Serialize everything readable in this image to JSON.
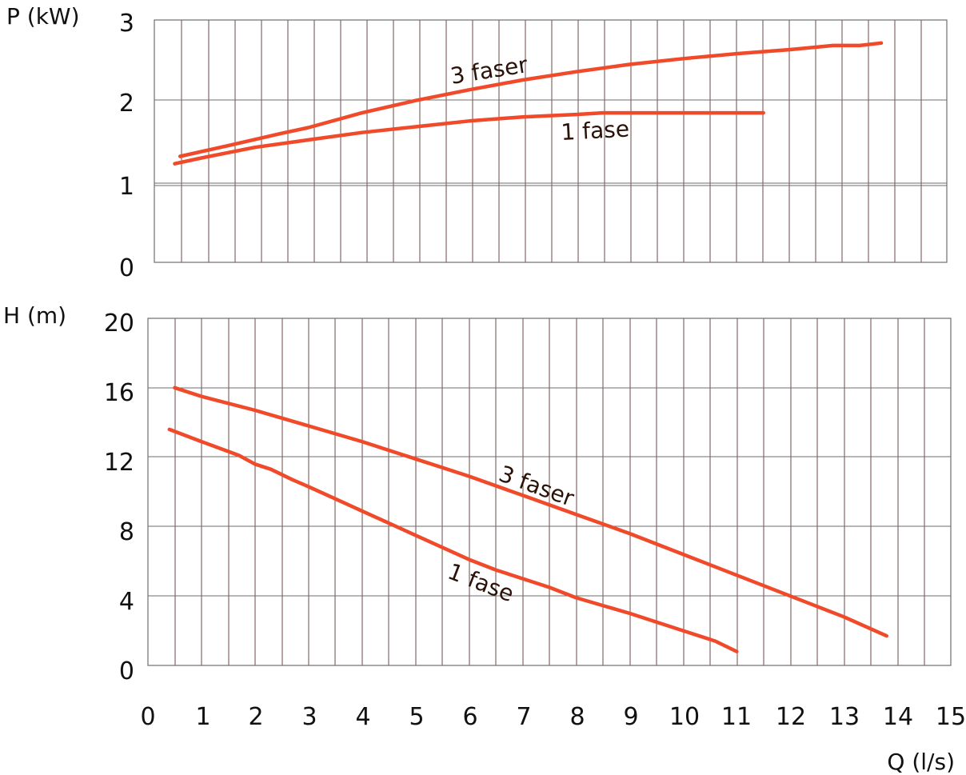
{
  "chart_data": [
    {
      "type": "line",
      "ylabel": "P (kW)",
      "xlim": [
        0,
        15
      ],
      "ylim": [
        0,
        3
      ],
      "yticks": [
        "0",
        "1",
        "2",
        "3"
      ],
      "grid": true,
      "series": [
        {
          "name": "3 faser",
          "color": "#f04a2a",
          "x": [
            0.6,
            1.5,
            2.5,
            3.0,
            4.0,
            5.0,
            6.0,
            7.0,
            8.0,
            9.0,
            10.0,
            11.0,
            12.0,
            12.8,
            13.3,
            13.7
          ],
          "y": [
            1.32,
            1.45,
            1.6,
            1.67,
            1.85,
            2.0,
            2.13,
            2.25,
            2.35,
            2.44,
            2.51,
            2.57,
            2.62,
            2.67,
            2.67,
            2.7
          ]
        },
        {
          "name": "1 fase",
          "color": "#f04a2a",
          "x": [
            0.5,
            1.0,
            2.0,
            3.0,
            4.0,
            5.0,
            6.0,
            7.0,
            8.0,
            8.5,
            9.5,
            10.5,
            11.5
          ],
          "y": [
            1.23,
            1.3,
            1.43,
            1.52,
            1.61,
            1.68,
            1.75,
            1.8,
            1.83,
            1.85,
            1.85,
            1.85,
            1.85
          ]
        }
      ]
    },
    {
      "type": "line",
      "ylabel": "H (m)",
      "xlabel": "Q (l/s)",
      "xlim": [
        0,
        15
      ],
      "ylim": [
        0,
        20
      ],
      "xticks": [
        "0",
        "1",
        "2",
        "3",
        "4",
        "5",
        "6",
        "7",
        "8",
        "9",
        "10",
        "11",
        "12",
        "13",
        "14",
        "15"
      ],
      "yticks": [
        "0",
        "4",
        "8",
        "12",
        "16",
        "20"
      ],
      "grid": true,
      "series": [
        {
          "name": "3 faser",
          "color": "#f04a2a",
          "x": [
            0.5,
            1.0,
            2.0,
            3.0,
            4.0,
            5.0,
            6.0,
            7.0,
            8.0,
            9.0,
            10.0,
            11.0,
            12.0,
            13.0,
            13.8
          ],
          "y": [
            16.0,
            15.5,
            14.7,
            13.8,
            12.9,
            11.9,
            10.9,
            9.8,
            8.7,
            7.6,
            6.4,
            5.2,
            4.0,
            2.8,
            1.7
          ]
        },
        {
          "name": "1 fase",
          "color": "#f04a2a",
          "x": [
            0.4,
            1.0,
            1.7,
            2.0,
            2.3,
            2.7,
            3.0,
            3.5,
            4.0,
            4.5,
            5.0,
            5.5,
            6.0,
            6.5,
            7.0,
            7.5,
            8.0,
            9.0,
            10.0,
            10.6,
            11.0
          ],
          "y": [
            13.6,
            12.9,
            12.1,
            11.6,
            11.3,
            10.7,
            10.3,
            9.6,
            8.9,
            8.2,
            7.5,
            6.8,
            6.1,
            5.5,
            5.0,
            4.5,
            3.9,
            3.0,
            2.0,
            1.4,
            0.8
          ]
        }
      ]
    }
  ]
}
